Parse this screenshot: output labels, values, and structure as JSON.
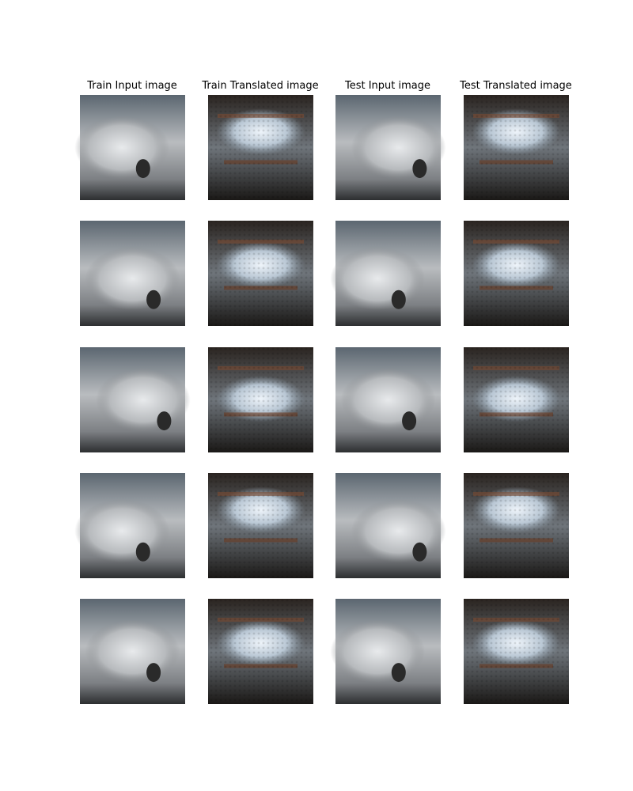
{
  "columns": [
    "Train Input image",
    "Train Translated image",
    "Test Input image",
    "Test Translated image"
  ]
}
